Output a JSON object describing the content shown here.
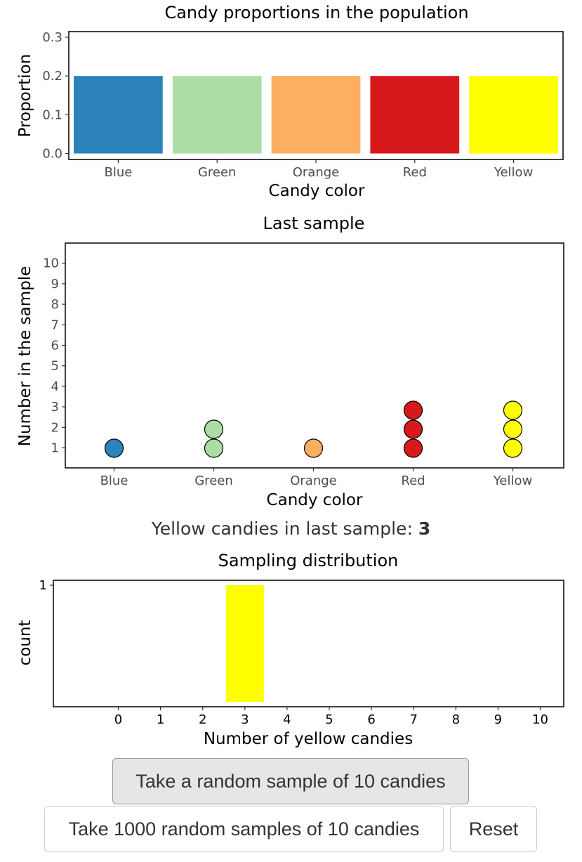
{
  "chart_data": [
    {
      "type": "bar",
      "title": "Candy proportions in the population",
      "xlabel": "Candy color",
      "ylabel": "Proportion",
      "categories": [
        "Blue",
        "Green",
        "Orange",
        "Red",
        "Yellow"
      ],
      "values": [
        0.2,
        0.2,
        0.2,
        0.2,
        0.2
      ],
      "colors": [
        "#2b83ba",
        "#abdda4",
        "#fdae61",
        "#d7191c",
        "#ffff00"
      ],
      "ylim": [
        0,
        0.3
      ],
      "yticks": [
        "0.0",
        "0.1",
        "0.2",
        "0.3"
      ],
      "ytick_values": [
        0,
        0.1,
        0.2,
        0.3
      ],
      "grid": false
    },
    {
      "type": "scatter",
      "title": "Last sample",
      "xlabel": "Candy color",
      "ylabel": "Number in the sample",
      "categories": [
        "Blue",
        "Green",
        "Orange",
        "Red",
        "Yellow"
      ],
      "counts": [
        1,
        2,
        1,
        3,
        3
      ],
      "colors": [
        "#2b83ba",
        "#abdda4",
        "#fdae61",
        "#d7191c",
        "#ffff00"
      ],
      "ylim": [
        0,
        10
      ],
      "yticks": [
        "1",
        "2",
        "3",
        "4",
        "5",
        "6",
        "7",
        "8",
        "9",
        "10"
      ],
      "grid": false
    },
    {
      "type": "bar",
      "title": "Sampling distribution",
      "xlabel": "Number of yellow candies",
      "ylabel": "count",
      "x": [
        0,
        1,
        2,
        3,
        4,
        5,
        6,
        7,
        8,
        9,
        10
      ],
      "xticks": [
        "0",
        "1",
        "2",
        "3",
        "4",
        "5",
        "6",
        "7",
        "8",
        "9",
        "10"
      ],
      "values": [
        0,
        0,
        0,
        1,
        0,
        0,
        0,
        0,
        0,
        0,
        0
      ],
      "highlight_x": 3,
      "highlight_color": "#ff0000",
      "bar_color": "#ffff00",
      "ylim": [
        0,
        1
      ],
      "yticks": [
        "1"
      ],
      "grid": false
    }
  ],
  "summary": {
    "label": "Yellow candies in last sample: ",
    "value": "3"
  },
  "buttons": {
    "sample_one": "Take a random sample of 10 candies",
    "sample_many": "Take 1000 random samples of 10 candies",
    "reset": "Reset"
  }
}
